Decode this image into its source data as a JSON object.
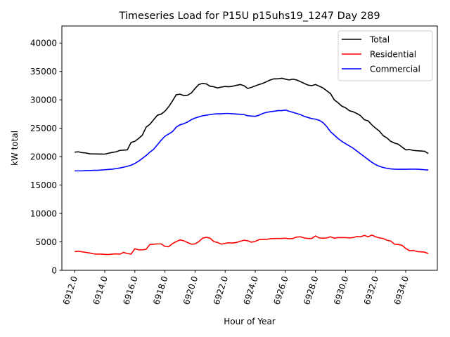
{
  "chart_data": {
    "type": "line",
    "title": "Timeseries Load for P15U p15uhs19_1247  Day 289",
    "xlabel": "Hour of Year",
    "ylabel": "kW total",
    "xlim": [
      6911.15,
      6936.1
    ],
    "ylim": [
      0,
      43000
    ],
    "xticks": [
      6912,
      6914,
      6916,
      6918,
      6920,
      6922,
      6924,
      6926,
      6928,
      6930,
      6932,
      6934
    ],
    "xtick_labels": [
      "6912.0",
      "6914.0",
      "6916.0",
      "6918.0",
      "6920.0",
      "6922.0",
      "6924.0",
      "6926.0",
      "6928.0",
      "6930.0",
      "6932.0",
      "6934.0"
    ],
    "yticks": [
      0,
      5000,
      10000,
      15000,
      20000,
      25000,
      30000,
      35000,
      40000
    ],
    "ytick_labels": [
      "0",
      "5000",
      "10000",
      "15000",
      "20000",
      "25000",
      "30000",
      "35000",
      "40000"
    ],
    "legend_position": "top-right",
    "x": [
      6912.0,
      6912.25,
      6912.5,
      6912.75,
      6913.0,
      6913.25,
      6913.5,
      6913.75,
      6914.0,
      6914.25,
      6914.5,
      6914.75,
      6915.0,
      6915.25,
      6915.5,
      6915.75,
      6916.0,
      6916.25,
      6916.5,
      6916.75,
      6917.0,
      6917.25,
      6917.5,
      6917.75,
      6918.0,
      6918.25,
      6918.5,
      6918.75,
      6919.0,
      6919.25,
      6919.5,
      6919.75,
      6920.0,
      6920.25,
      6920.5,
      6920.75,
      6921.0,
      6921.25,
      6921.5,
      6921.75,
      6922.0,
      6922.25,
      6922.5,
      6922.75,
      6923.0,
      6923.25,
      6923.5,
      6923.75,
      6924.0,
      6924.25,
      6924.5,
      6924.75,
      6925.0,
      6925.25,
      6925.5,
      6925.75,
      6926.0,
      6926.25,
      6926.5,
      6926.75,
      6927.0,
      6927.25,
      6927.5,
      6927.75,
      6928.0,
      6928.25,
      6928.5,
      6928.75,
      6929.0,
      6929.25,
      6929.5,
      6929.75,
      6930.0,
      6930.25,
      6930.5,
      6930.75,
      6931.0,
      6931.25,
      6931.5,
      6931.75,
      6932.0,
      6932.25,
      6932.5,
      6932.75,
      6933.0,
      6933.25,
      6933.5,
      6933.75,
      6934.0,
      6934.25,
      6934.5,
      6934.75,
      6935.0,
      6935.25
    ],
    "series": [
      {
        "name": "Total",
        "color": "#000000",
        "values": [
          20800,
          20850,
          20700,
          20650,
          20500,
          20480,
          20470,
          20460,
          20450,
          20600,
          20750,
          20850,
          21100,
          21150,
          21200,
          22500,
          22700,
          23200,
          23800,
          25200,
          25700,
          26500,
          27300,
          27500,
          28000,
          28800,
          29800,
          30900,
          31000,
          30750,
          30800,
          31200,
          32000,
          32700,
          32900,
          32800,
          32400,
          32300,
          32100,
          32250,
          32350,
          32300,
          32400,
          32550,
          32700,
          32500,
          32000,
          32200,
          32450,
          32700,
          32900,
          33200,
          33500,
          33700,
          33700,
          33800,
          33650,
          33500,
          33650,
          33500,
          33200,
          32900,
          32600,
          32500,
          32700,
          32400,
          32100,
          31600,
          31100,
          30000,
          29500,
          28900,
          28600,
          28100,
          27900,
          27600,
          27200,
          26500,
          26300,
          25600,
          25000,
          24500,
          23700,
          23300,
          22700,
          22400,
          22200,
          21700,
          21200,
          21250,
          21100,
          21050,
          21000,
          20950
        ],
        "end_value": 20550
      },
      {
        "name": "Residential",
        "color": "#ff0000",
        "values": [
          3300,
          3350,
          3250,
          3150,
          3050,
          2900,
          2850,
          2850,
          2800,
          2780,
          2850,
          2900,
          2850,
          3150,
          2950,
          2850,
          3800,
          3600,
          3600,
          3700,
          4550,
          4600,
          4650,
          4650,
          4200,
          4150,
          4700,
          5050,
          5350,
          5200,
          4900,
          4600,
          4650,
          5050,
          5650,
          5800,
          5650,
          5050,
          4900,
          4600,
          4750,
          4850,
          4800,
          4900,
          5100,
          5300,
          5200,
          4950,
          5100,
          5400,
          5450,
          5450,
          5550,
          5600,
          5600,
          5600,
          5650,
          5550,
          5600,
          5850,
          5900,
          5700,
          5600,
          5600,
          6050,
          5700,
          5650,
          5700,
          5900,
          5650,
          5750,
          5750,
          5750,
          5700,
          5750,
          5950,
          5900,
          6150,
          5900,
          6200,
          5900,
          5700,
          5600,
          5300,
          5150,
          4600,
          4550,
          4400,
          3850,
          3450,
          3500,
          3300,
          3250,
          3200
        ],
        "end_value": 2950
      },
      {
        "name": "Commercial",
        "color": "#0000ff",
        "values": [
          17500,
          17500,
          17500,
          17550,
          17550,
          17600,
          17600,
          17650,
          17700,
          17750,
          17800,
          17900,
          18000,
          18150,
          18300,
          18500,
          18800,
          19200,
          19700,
          20200,
          20800,
          21300,
          22100,
          22900,
          23600,
          24000,
          24400,
          25200,
          25600,
          25800,
          26100,
          26500,
          26800,
          27000,
          27200,
          27300,
          27400,
          27500,
          27550,
          27550,
          27600,
          27600,
          27550,
          27500,
          27450,
          27400,
          27200,
          27150,
          27100,
          27300,
          27600,
          27800,
          27900,
          28000,
          28100,
          28100,
          28200,
          28000,
          27800,
          27600,
          27400,
          27100,
          26900,
          26700,
          26600,
          26400,
          26000,
          25300,
          24400,
          23800,
          23200,
          22700,
          22300,
          21900,
          21500,
          21000,
          20500,
          20000,
          19500,
          19000,
          18600,
          18300,
          18100,
          17950,
          17850,
          17800,
          17780,
          17780,
          17780,
          17800,
          17800,
          17800,
          17750,
          17700
        ],
        "end_value": 17650
      }
    ]
  }
}
